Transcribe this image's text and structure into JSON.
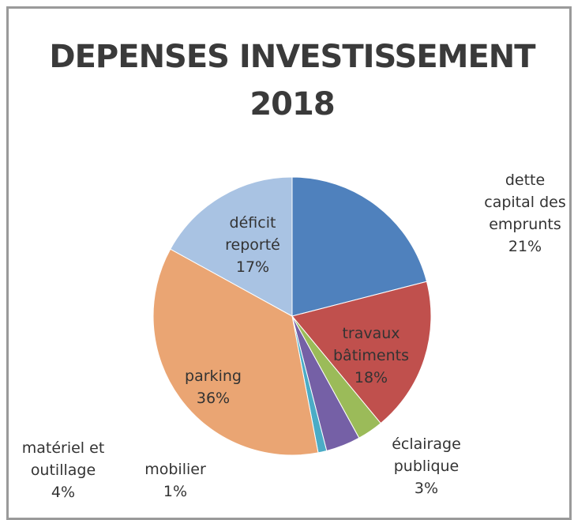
{
  "chart_data": {
    "type": "pie",
    "title": "DEPENSES INVESTISSEMENT 2018",
    "categories": [
      "dette capital des emprunts",
      "travaux bâtiments",
      "éclairage publique",
      "matériel et outillage",
      "mobilier",
      "parking",
      "déficit reporté"
    ],
    "values": [
      21,
      18,
      3,
      4,
      1,
      36,
      17
    ],
    "value_labels": [
      "21%",
      "18%",
      "3%",
      "4%",
      "1%",
      "36%",
      "17%"
    ],
    "colors": [
      "#4f81bd",
      "#c0504d",
      "#9bbb59",
      "#7560a6",
      "#4bacc6",
      "#eaa573",
      "#a9c3e3"
    ]
  }
}
